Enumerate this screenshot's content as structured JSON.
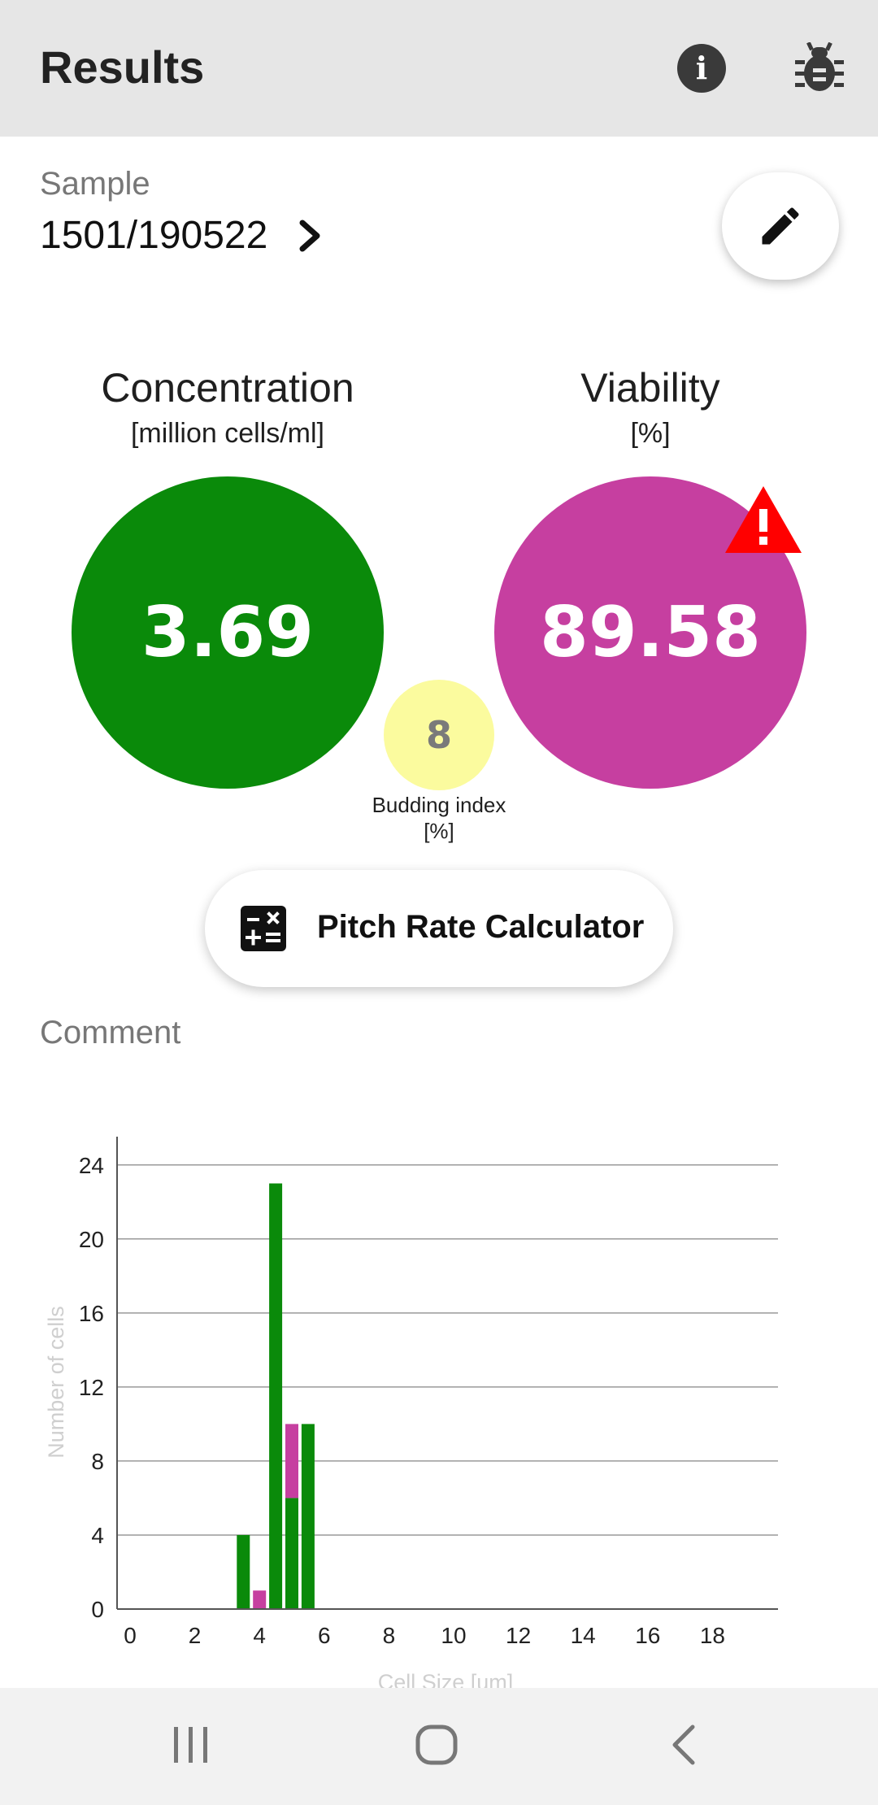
{
  "appbar": {
    "title": "Results",
    "info_icon": "info-icon",
    "bug_icon": "bug-icon"
  },
  "sample": {
    "label": "Sample",
    "value": "1501/190522",
    "chevron_icon": "chevron-right-icon",
    "edit_icon": "pencil-icon"
  },
  "metrics": {
    "concentration": {
      "title": "Concentration",
      "unit": "[million cells/ml]",
      "value": "3.69",
      "color": "#0a8a0a"
    },
    "viability": {
      "title": "Viability",
      "unit": "[%]",
      "value": "89.58",
      "color": "#c63fa0",
      "warning_icon": "warning-triangle-icon",
      "warning_color": "#ff0000"
    },
    "budding": {
      "value": "8",
      "label_line1": "Budding index",
      "label_line2": "[%]",
      "color": "#fbfb9e"
    }
  },
  "pitch_button": {
    "label": "Pitch Rate Calculator",
    "icon": "calculator-icon"
  },
  "comment": {
    "label": "Comment"
  },
  "chart_data": {
    "type": "bar",
    "stacked": true,
    "xlabel": "Cell Size [um]",
    "ylabel": "Number of cells",
    "xlim": [
      0,
      20
    ],
    "ylim": [
      0,
      25
    ],
    "x_ticks": [
      0,
      2,
      4,
      6,
      8,
      10,
      12,
      14,
      16,
      18
    ],
    "y_ticks": [
      0,
      4,
      8,
      12,
      16,
      20,
      24
    ],
    "grid": true,
    "bin_centers": [
      3.5,
      4.0,
      4.5,
      5.0,
      5.5
    ],
    "series": [
      {
        "color": "#0a8a0a",
        "values": [
          4,
          0,
          23,
          6,
          10
        ]
      },
      {
        "color": "#c63fa0",
        "values": [
          0,
          1,
          0,
          4,
          0
        ]
      }
    ]
  },
  "navbar": {
    "recent_icon": "recent-apps-icon",
    "home_icon": "home-icon",
    "back_icon": "back-icon"
  }
}
